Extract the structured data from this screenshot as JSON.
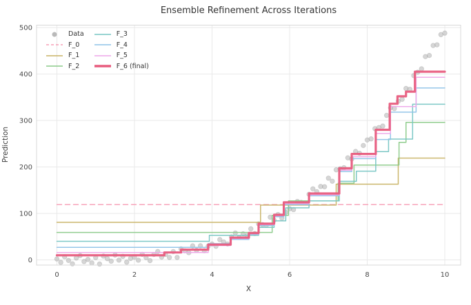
{
  "chart_data": {
    "type": "line",
    "title": "Ensemble Refinement Across Iterations",
    "xlabel": "X",
    "ylabel": "Prediction",
    "xlim": [
      -0.52,
      10.42
    ],
    "ylim": [
      -11,
      505
    ],
    "xticks": [
      0,
      2,
      4,
      6,
      8,
      10
    ],
    "yticks": [
      0,
      100,
      200,
      300,
      400,
      500
    ],
    "grid": true,
    "grid_color": "#e9e9e9",
    "spine_color": "#d8d8d8",
    "background": "#ffffff",
    "legend_position": "upper left",
    "scatter": {
      "name": "Data",
      "color": "#b4b4b4",
      "edge_color": "#8f8f8f",
      "opacity": 0.55,
      "radius": 3.3,
      "x": [
        0,
        0.1,
        0.2,
        0.3,
        0.4,
        0.5,
        0.6,
        0.7,
        0.8,
        0.9,
        1,
        1.1,
        1.2,
        1.3,
        1.4,
        1.5,
        1.6,
        1.7,
        1.8,
        1.9,
        2,
        2.1,
        2.2,
        2.3,
        2.4,
        2.5,
        2.6,
        2.7,
        2.8,
        2.9,
        3,
        3.1,
        3.2,
        3.3,
        3.4,
        3.5,
        3.6,
        3.7,
        3.8,
        3.9,
        4,
        4.1,
        4.2,
        4.3,
        4.4,
        4.5,
        4.6,
        4.7,
        4.8,
        4.9,
        5,
        5.1,
        5.2,
        5.3,
        5.4,
        5.5,
        5.6,
        5.7,
        5.8,
        5.9,
        6,
        6.1,
        6.2,
        6.3,
        6.4,
        6.5,
        6.6,
        6.7,
        6.8,
        6.9,
        7,
        7.1,
        7.2,
        7.3,
        7.4,
        7.5,
        7.6,
        7.7,
        7.8,
        7.9,
        8,
        8.1,
        8.2,
        8.3,
        8.4,
        8.5,
        8.6,
        8.7,
        8.8,
        8.9,
        9,
        9.1,
        9.2,
        9.3,
        9.4,
        9.5,
        9.6,
        9.7,
        9.8,
        9.9,
        10
      ],
      "y": [
        2.1,
        -5.3,
        6.7,
        -1.2,
        -8.4,
        4.0,
        9.3,
        -3.5,
        1.1,
        -6.5,
        4.9,
        -8.9,
        8.2,
        2.7,
        -2.7,
        10.5,
        -0.5,
        7.6,
        -4.8,
        3.1,
        6.1,
        -0.7,
        12.0,
        4.9,
        -1.5,
        11.7,
        18.0,
        6.1,
        11.8,
        5.3,
        17.9,
        5.3,
        23.7,
        19.6,
        15.6,
        30.2,
        20.8,
        30.4,
        19.7,
        29.4,
        34.1,
        29.2,
        43.7,
        38.6,
        34.2,
        49.5,
        57.9,
        48.2,
        56.1,
        51.9,
        66.9,
        56.7,
        77.6,
        76.0,
        74.6,
        92.0,
        85.3,
        97.7,
        89.9,
        102.4,
        110.1,
        108.2,
        125.9,
        123.8,
        122.7,
        141.2,
        152.9,
        146.7,
        158.0,
        157.4,
        175.9,
        169.4,
        193.9,
        196.1,
        198.5,
        219.7,
        217.0,
        233.4,
        229.6,
        246.2,
        258.1,
        260.4,
        282.4,
        284.7,
        288.0,
        311.0,
        327.2,
        325.6,
        341.5,
        345.6,
        368.9,
        367.2,
        396.6,
        403.8,
        411.2,
        437.5,
        439.9,
        461.4,
        462.9,
        484.8,
        488.0
      ]
    },
    "series": [
      {
        "name": "F_0",
        "color": "#f79fb6",
        "width": 1.5,
        "dash": "7 5",
        "base": 119,
        "steps": []
      },
      {
        "name": "F_1",
        "color": "#c8b264",
        "width": 1.5,
        "dash": null,
        "base": 81,
        "steps": [
          [
            5.25,
            118
          ],
          [
            7.2,
            163
          ],
          [
            8.8,
            219
          ]
        ]
      },
      {
        "name": "F_2",
        "color": "#8aca88",
        "width": 1.5,
        "dash": null,
        "base": 59,
        "steps": [
          [
            5.55,
            96
          ],
          [
            5.97,
            127
          ],
          [
            7.25,
            165
          ],
          [
            7.66,
            204
          ],
          [
            8.82,
            253
          ],
          [
            9.0,
            296
          ]
        ]
      },
      {
        "name": "F_3",
        "color": "#76c5c3",
        "width": 1.5,
        "dash": null,
        "base": 40,
        "steps": [
          [
            3.93,
            53
          ],
          [
            5.2,
            70
          ],
          [
            5.6,
            84
          ],
          [
            5.9,
            112
          ],
          [
            6.5,
            127
          ],
          [
            7.28,
            169
          ],
          [
            7.72,
            191
          ],
          [
            8.22,
            233
          ],
          [
            8.55,
            260
          ],
          [
            9.17,
            335
          ]
        ]
      },
      {
        "name": "F_4",
        "color": "#8ec3e8",
        "width": 1.5,
        "dash": null,
        "base": 27,
        "steps": [
          [
            3.9,
            35
          ],
          [
            4.48,
            44
          ],
          [
            4.95,
            55
          ],
          [
            5.2,
            74
          ],
          [
            5.6,
            93
          ],
          [
            5.85,
            119
          ],
          [
            6.5,
            138
          ],
          [
            7.28,
            190
          ],
          [
            7.6,
            218
          ],
          [
            8.22,
            259
          ],
          [
            8.6,
            318
          ],
          [
            9.26,
            370
          ]
        ]
      },
      {
        "name": "F_5",
        "color": "#eea6e9",
        "width": 1.5,
        "dash": null,
        "base": 16,
        "steps": [
          [
            3.9,
            31
          ],
          [
            4.48,
            46
          ],
          [
            4.95,
            56
          ],
          [
            5.2,
            76
          ],
          [
            5.6,
            95
          ],
          [
            5.85,
            121
          ],
          [
            6.5,
            140
          ],
          [
            7.28,
            193
          ],
          [
            7.6,
            222
          ],
          [
            8.22,
            272
          ],
          [
            8.6,
            330
          ],
          [
            9.26,
            393
          ]
        ]
      },
      {
        "name": "F_6 (final)",
        "color": "#e85c7e",
        "width": 3.2,
        "dash": null,
        "base": 10,
        "steps": [
          [
            2.77,
            16
          ],
          [
            3.2,
            22
          ],
          [
            3.9,
            33
          ],
          [
            4.48,
            48
          ],
          [
            4.95,
            58
          ],
          [
            5.2,
            78
          ],
          [
            5.6,
            97
          ],
          [
            5.85,
            124
          ],
          [
            6.5,
            143
          ],
          [
            7.28,
            197
          ],
          [
            7.6,
            228
          ],
          [
            8.22,
            280
          ],
          [
            8.58,
            336
          ],
          [
            8.78,
            352
          ],
          [
            9.0,
            362
          ],
          [
            9.23,
            405
          ]
        ]
      }
    ],
    "legend": [
      {
        "label": "Data",
        "swatch": "dot",
        "color": "#b9b9b9",
        "width": 1.6,
        "dash": null
      },
      {
        "label": "F_0",
        "swatch": "line",
        "color": "#f79fb6",
        "width": 1.6,
        "dash": "4 3"
      },
      {
        "label": "F_1",
        "swatch": "line",
        "color": "#c8b264",
        "width": 1.6,
        "dash": null
      },
      {
        "label": "F_2",
        "swatch": "line",
        "color": "#8aca88",
        "width": 1.6,
        "dash": null
      },
      {
        "label": "F_3",
        "swatch": "line",
        "color": "#76c5c3",
        "width": 1.6,
        "dash": null
      },
      {
        "label": "F_4",
        "swatch": "line",
        "color": "#8ec3e8",
        "width": 1.6,
        "dash": null
      },
      {
        "label": "F_5",
        "swatch": "line",
        "color": "#eea6e9",
        "width": 1.6,
        "dash": null
      },
      {
        "label": "F_6 (final)",
        "swatch": "line",
        "color": "#e85c7e",
        "width": 3.4,
        "dash": null
      }
    ]
  }
}
